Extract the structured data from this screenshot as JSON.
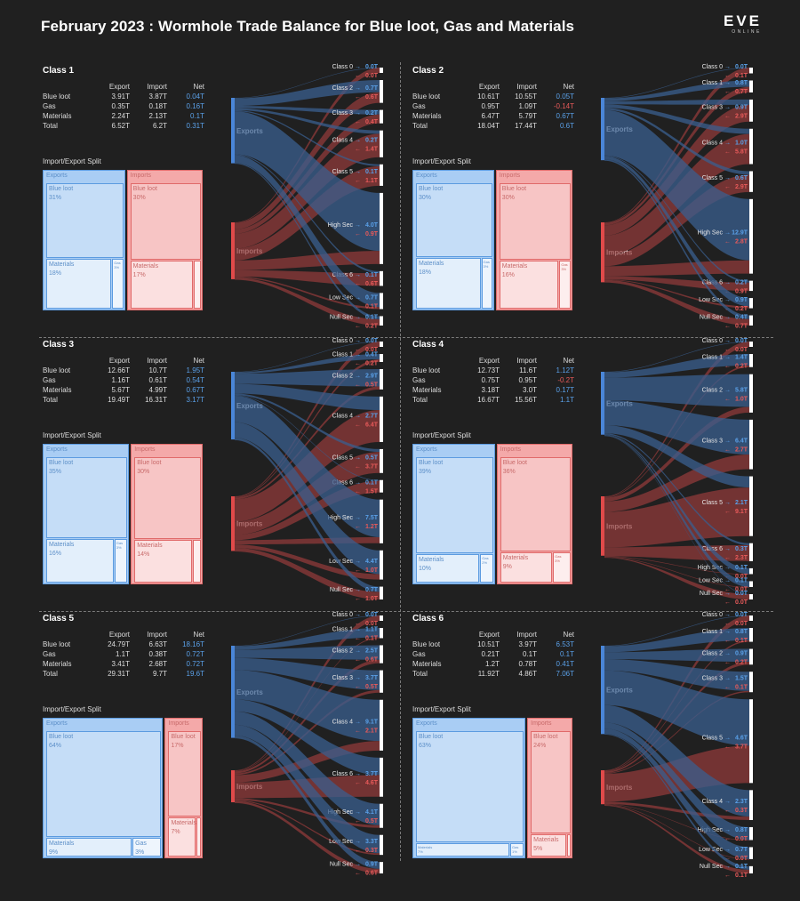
{
  "title": "February 2023 : Wormhole Trade Balance for Blue loot, Gas and Materials",
  "logo": {
    "line1": "EVE",
    "line2": "ONLINE"
  },
  "colors": {
    "export": "#4a86d8",
    "import": "#e04a4a",
    "export_flow": "#3a5f8f",
    "import_flow": "#8f3a3a",
    "background": "#202020"
  },
  "labels": {
    "exports": "Exports",
    "imports": "Imports",
    "split": "Import/Export Split",
    "hdr_export": "Export",
    "hdr_import": "Import",
    "hdr_net": "Net"
  },
  "chart_data": [
    {
      "type": "sankey",
      "title": "Class 1",
      "stats": [
        {
          "label": "Blue loot",
          "export": "3.91T",
          "import": "3.87T",
          "net": "0.04T"
        },
        {
          "label": "Gas",
          "export": "0.35T",
          "import": "0.18T",
          "net": "0.16T"
        },
        {
          "label": "Materials",
          "export": "2.24T",
          "import": "2.13T",
          "net": "0.1T"
        },
        {
          "label": "Total",
          "export": "6.52T",
          "import": "6.2T",
          "net": "0.31T"
        }
      ],
      "split": {
        "exports": [
          {
            "name": "Blue loot",
            "pct": "31%",
            "v": 31
          },
          {
            "name": "Materials",
            "pct": "18%",
            "v": 18
          },
          {
            "name": "Gas",
            "pct": "3%",
            "v": 3
          }
        ],
        "imports": [
          {
            "name": "Blue loot",
            "pct": "30%",
            "v": 30
          },
          {
            "name": "Materials",
            "pct": "17%",
            "v": 17
          },
          {
            "name": "Gas",
            "pct": "",
            "v": 2
          }
        ]
      },
      "flows": [
        {
          "region": "Class 0",
          "export": "0.0T",
          "import": "0.0T",
          "ev": 0.0,
          "iv": 0.0
        },
        {
          "region": "Class 2",
          "export": "0.7T",
          "import": "0.6T",
          "ev": 0.7,
          "iv": 0.6
        },
        {
          "region": "Class 3",
          "export": "0.2T",
          "import": "0.4T",
          "ev": 0.2,
          "iv": 0.4
        },
        {
          "region": "Class 4",
          "export": "0.2T",
          "import": "1.4T",
          "ev": 0.2,
          "iv": 1.4
        },
        {
          "region": "Class 5",
          "export": "0.1T",
          "import": "1.1T",
          "ev": 0.1,
          "iv": 1.1
        },
        {
          "region": "High Sec",
          "export": "4.0T",
          "import": "0.9T",
          "ev": 4.0,
          "iv": 0.9
        },
        {
          "region": "Class 6",
          "export": "0.1T",
          "import": "0.6T",
          "ev": 0.1,
          "iv": 0.6
        },
        {
          "region": "Low Sec",
          "export": "0.7T",
          "import": "0.1T",
          "ev": 0.7,
          "iv": 0.1
        },
        {
          "region": "Null Sec",
          "export": "0.1T",
          "import": "0.2T",
          "ev": 0.1,
          "iv": 0.2
        }
      ]
    },
    {
      "type": "sankey",
      "title": "Class 2",
      "stats": [
        {
          "label": "Blue loot",
          "export": "10.61T",
          "import": "10.55T",
          "net": "0.05T"
        },
        {
          "label": "Gas",
          "export": "0.95T",
          "import": "1.09T",
          "net": "-0.14T"
        },
        {
          "label": "Materials",
          "export": "6.47T",
          "import": "5.79T",
          "net": "0.67T"
        },
        {
          "label": "Total",
          "export": "18.04T",
          "import": "17.44T",
          "net": "0.6T"
        }
      ],
      "split": {
        "exports": [
          {
            "name": "Blue loot",
            "pct": "30%",
            "v": 30
          },
          {
            "name": "Materials",
            "pct": "18%",
            "v": 18
          },
          {
            "name": "Gas",
            "pct": "3%",
            "v": 3
          }
        ],
        "imports": [
          {
            "name": "Blue loot",
            "pct": "30%",
            "v": 30
          },
          {
            "name": "Materials",
            "pct": "16%",
            "v": 16
          },
          {
            "name": "Gas",
            "pct": "3%",
            "v": 3
          }
        ]
      },
      "flows": [
        {
          "region": "Class 0",
          "export": "0.0T",
          "import": "0.1T",
          "ev": 0.0,
          "iv": 0.1
        },
        {
          "region": "Class 1",
          "export": "0.8T",
          "import": "0.7T",
          "ev": 0.8,
          "iv": 0.7
        },
        {
          "region": "Class 3",
          "export": "0.9T",
          "import": "2.9T",
          "ev": 0.9,
          "iv": 2.9
        },
        {
          "region": "Class 4",
          "export": "1.0T",
          "import": "5.8T",
          "ev": 1.0,
          "iv": 5.8
        },
        {
          "region": "Class 5",
          "export": "0.6T",
          "import": "2.9T",
          "ev": 0.6,
          "iv": 2.9
        },
        {
          "region": "High Sec",
          "export": "12.9T",
          "import": "2.8T",
          "ev": 12.9,
          "iv": 2.8
        },
        {
          "region": "Class 6",
          "export": "0.2T",
          "import": "0.9T",
          "ev": 0.2,
          "iv": 0.9
        },
        {
          "region": "Low Sec",
          "export": "0.9T",
          "import": "0.2T",
          "ev": 0.9,
          "iv": 0.2
        },
        {
          "region": "Null Sec",
          "export": "0.4T",
          "import": "0.7T",
          "ev": 0.4,
          "iv": 0.7
        }
      ]
    },
    {
      "type": "sankey",
      "title": "Class 3",
      "stats": [
        {
          "label": "Blue loot",
          "export": "12.66T",
          "import": "10.7T",
          "net": "1.95T"
        },
        {
          "label": "Gas",
          "export": "1.16T",
          "import": "0.61T",
          "net": "0.54T"
        },
        {
          "label": "Materials",
          "export": "5.67T",
          "import": "4.99T",
          "net": "0.67T"
        },
        {
          "label": "Total",
          "export": "19.49T",
          "import": "16.31T",
          "net": "3.17T"
        }
      ],
      "split": {
        "exports": [
          {
            "name": "Blue loot",
            "pct": "35%",
            "v": 35
          },
          {
            "name": "Materials",
            "pct": "16%",
            "v": 16
          },
          {
            "name": "Gas",
            "pct": "3%",
            "v": 3
          }
        ],
        "imports": [
          {
            "name": "Blue loot",
            "pct": "30%",
            "v": 30
          },
          {
            "name": "Materials",
            "pct": "14%",
            "v": 14
          },
          {
            "name": "Gas",
            "pct": "",
            "v": 2
          }
        ]
      },
      "flows": [
        {
          "region": "Class 0",
          "export": "0.0T",
          "import": "0.0T",
          "ev": 0.0,
          "iv": 0.0
        },
        {
          "region": "Class 1",
          "export": "0.4T",
          "import": "0.2T",
          "ev": 0.4,
          "iv": 0.2
        },
        {
          "region": "Class 2",
          "export": "2.9T",
          "import": "0.5T",
          "ev": 2.9,
          "iv": 0.5
        },
        {
          "region": "Class 4",
          "export": "2.7T",
          "import": "6.4T",
          "ev": 2.7,
          "iv": 6.4
        },
        {
          "region": "Class 5",
          "export": "0.5T",
          "import": "3.7T",
          "ev": 0.5,
          "iv": 3.7
        },
        {
          "region": "Class 6",
          "export": "0.1T",
          "import": "1.5T",
          "ev": 0.1,
          "iv": 1.5
        },
        {
          "region": "High Sec",
          "export": "7.5T",
          "import": "1.2T",
          "ev": 7.5,
          "iv": 1.2
        },
        {
          "region": "Low Sec",
          "export": "4.4T",
          "import": "1.0T",
          "ev": 4.4,
          "iv": 1.0
        },
        {
          "region": "Null Sec",
          "export": "0.7T",
          "import": "1.0T",
          "ev": 0.7,
          "iv": 1.0
        }
      ]
    },
    {
      "type": "sankey",
      "title": "Class 4",
      "stats": [
        {
          "label": "Blue loot",
          "export": "12.73T",
          "import": "11.6T",
          "net": "1.12T"
        },
        {
          "label": "Gas",
          "export": "0.75T",
          "import": "0.95T",
          "net": "-0.2T"
        },
        {
          "label": "Materials",
          "export": "3.18T",
          "import": "3.0T",
          "net": "0.17T"
        },
        {
          "label": "Total",
          "export": "16.67T",
          "import": "15.56T",
          "net": "1.1T"
        }
      ],
      "split": {
        "exports": [
          {
            "name": "Blue loot",
            "pct": "39%",
            "v": 39
          },
          {
            "name": "Materials",
            "pct": "10%",
            "v": 10
          },
          {
            "name": "Gas",
            "pct": "2%",
            "v": 2
          }
        ],
        "imports": [
          {
            "name": "Blue loot",
            "pct": "36%",
            "v": 36
          },
          {
            "name": "Materials",
            "pct": "9%",
            "v": 9
          },
          {
            "name": "Gas",
            "pct": "3%",
            "v": 3
          }
        ]
      },
      "flows": [
        {
          "region": "Class 0",
          "export": "0.0T",
          "import": "0.0T",
          "ev": 0.0,
          "iv": 0.0
        },
        {
          "region": "Class 1",
          "export": "1.4T",
          "import": "0.2T",
          "ev": 1.4,
          "iv": 0.2
        },
        {
          "region": "Class 2",
          "export": "5.8T",
          "import": "1.0T",
          "ev": 5.8,
          "iv": 1.0
        },
        {
          "region": "Class 3",
          "export": "6.4T",
          "import": "2.7T",
          "ev": 6.4,
          "iv": 2.7
        },
        {
          "region": "Class 5",
          "export": "2.1T",
          "import": "9.1T",
          "ev": 2.1,
          "iv": 9.1
        },
        {
          "region": "Class 6",
          "export": "0.3T",
          "import": "2.3T",
          "ev": 0.3,
          "iv": 2.3
        },
        {
          "region": "High Sec",
          "export": "0.1T",
          "import": "0.0T",
          "ev": 0.1,
          "iv": 0.0
        },
        {
          "region": "Low Sec",
          "export": "0.1T",
          "import": "0.0T",
          "ev": 0.1,
          "iv": 0.0
        },
        {
          "region": "Null Sec",
          "export": "0.0T",
          "import": "0.0T",
          "ev": 0.0,
          "iv": 0.0
        }
      ]
    },
    {
      "type": "sankey",
      "title": "Class 5",
      "stats": [
        {
          "label": "Blue loot",
          "export": "24.79T",
          "import": "6.63T",
          "net": "18.16T"
        },
        {
          "label": "Gas",
          "export": "1.1T",
          "import": "0.38T",
          "net": "0.72T"
        },
        {
          "label": "Materials",
          "export": "3.41T",
          "import": "2.68T",
          "net": "0.72T"
        },
        {
          "label": "Total",
          "export": "29.31T",
          "import": "9.7T",
          "net": "19.6T"
        }
      ],
      "split": {
        "exports": [
          {
            "name": "Blue loot",
            "pct": "64%",
            "v": 64
          },
          {
            "name": "Materials",
            "pct": "9%",
            "v": 9
          },
          {
            "name": "Gas",
            "pct": "3%",
            "v": 3
          }
        ],
        "imports": [
          {
            "name": "Blue loot",
            "pct": "17%",
            "v": 17
          },
          {
            "name": "Materials",
            "pct": "7%",
            "v": 7
          },
          {
            "name": "Gas",
            "pct": "",
            "v": 1
          }
        ]
      },
      "flows": [
        {
          "region": "Class 0",
          "export": "0.0T",
          "import": "0.0T",
          "ev": 0.0,
          "iv": 0.0
        },
        {
          "region": "Class 1",
          "export": "1.1T",
          "import": "0.1T",
          "ev": 1.1,
          "iv": 0.1
        },
        {
          "region": "Class 2",
          "export": "2.5T",
          "import": "0.6T",
          "ev": 2.5,
          "iv": 0.6
        },
        {
          "region": "Class 3",
          "export": "3.7T",
          "import": "0.5T",
          "ev": 3.7,
          "iv": 0.5
        },
        {
          "region": "Class 4",
          "export": "9.1T",
          "import": "2.1T",
          "ev": 9.1,
          "iv": 2.1
        },
        {
          "region": "Class 6",
          "export": "3.7T",
          "import": "4.6T",
          "ev": 3.7,
          "iv": 4.6
        },
        {
          "region": "High Sec",
          "export": "4.1T",
          "import": "0.5T",
          "ev": 4.1,
          "iv": 0.5
        },
        {
          "region": "Low Sec",
          "export": "3.3T",
          "import": "0.3T",
          "ev": 3.3,
          "iv": 0.3
        },
        {
          "region": "Null Sec",
          "export": "0.9T",
          "import": "0.6T",
          "ev": 0.9,
          "iv": 0.6
        }
      ]
    },
    {
      "type": "sankey",
      "title": "Class 6",
      "stats": [
        {
          "label": "Blue loot",
          "export": "10.51T",
          "import": "3.97T",
          "net": "6.53T"
        },
        {
          "label": "Gas",
          "export": "0.21T",
          "import": "0.1T",
          "net": "0.1T"
        },
        {
          "label": "Materials",
          "export": "1.2T",
          "import": "0.78T",
          "net": "0.41T"
        },
        {
          "label": "Total",
          "export": "11.92T",
          "import": "4.86T",
          "net": "7.06T"
        }
      ],
      "split": {
        "exports": [
          {
            "name": "Blue loot",
            "pct": "63%",
            "v": 63
          },
          {
            "name": "Materials",
            "pct": "7%",
            "v": 7
          },
          {
            "name": "Gas",
            "pct": "1%",
            "v": 1
          }
        ],
        "imports": [
          {
            "name": "Blue loot",
            "pct": "24%",
            "v": 24
          },
          {
            "name": "Materials",
            "pct": "5%",
            "v": 5
          },
          {
            "name": "Gas",
            "pct": "",
            "v": 0.5
          }
        ]
      },
      "flows": [
        {
          "region": "Class 0",
          "export": "0.0T",
          "import": "0.0T",
          "ev": 0.0,
          "iv": 0.0
        },
        {
          "region": "Class 1",
          "export": "0.8T",
          "import": "0.1T",
          "ev": 0.8,
          "iv": 0.1
        },
        {
          "region": "Class 2",
          "export": "0.9T",
          "import": "0.2T",
          "ev": 0.9,
          "iv": 0.2
        },
        {
          "region": "Class 3",
          "export": "1.5T",
          "import": "0.1T",
          "ev": 1.5,
          "iv": 0.1
        },
        {
          "region": "Class 5",
          "export": "4.6T",
          "import": "3.7T",
          "ev": 4.6,
          "iv": 3.7
        },
        {
          "region": "Class 4",
          "export": "2.3T",
          "import": "0.3T",
          "ev": 2.3,
          "iv": 0.3
        },
        {
          "region": "High Sec",
          "export": "0.8T",
          "import": "0.0T",
          "ev": 0.8,
          "iv": 0.0
        },
        {
          "region": "Low Sec",
          "export": "0.7T",
          "import": "0.0T",
          "ev": 0.7,
          "iv": 0.0
        },
        {
          "region": "Null Sec",
          "export": "0.1T",
          "import": "0.1T",
          "ev": 0.1,
          "iv": 0.1
        }
      ]
    }
  ]
}
